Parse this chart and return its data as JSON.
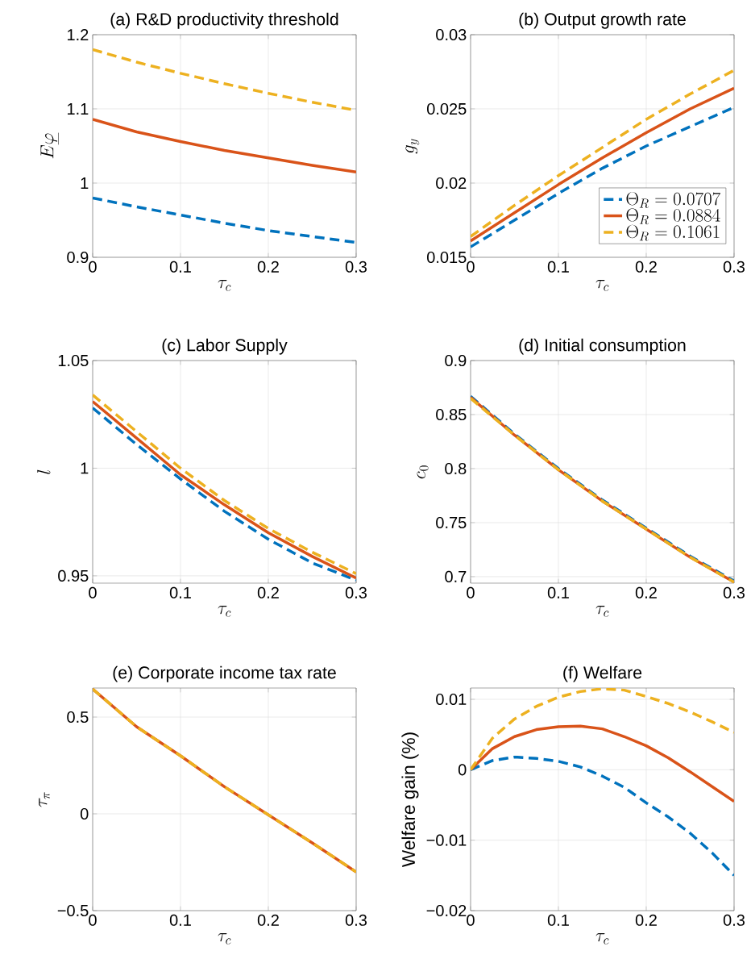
{
  "chart_data": [
    {
      "type": "line",
      "title": "(a) R&D productivity threshold",
      "xlabel": "\\tau_c",
      "ylabel": "E\\underline{\\varphi}",
      "grid": true,
      "x": [
        0,
        0.05,
        0.1,
        0.15,
        0.2,
        0.25,
        0.3
      ],
      "xlim": [
        0,
        0.3
      ],
      "xticks": [
        0,
        0.1,
        0.2,
        0.3
      ],
      "ylim": [
        0.9,
        1.2
      ],
      "yticks": [
        0.9,
        1,
        1.1,
        1.2
      ],
      "series": [
        {
          "color": "#0072bd",
          "line_style": "dashed",
          "values": [
            0.98,
            0.968,
            0.957,
            0.946,
            0.936,
            0.928,
            0.92
          ]
        },
        {
          "color": "#d95319",
          "line_style": "solid",
          "values": [
            1.086,
            1.069,
            1.056,
            1.044,
            1.034,
            1.024,
            1.015
          ]
        },
        {
          "color": "#edb120",
          "line_style": "dashed",
          "values": [
            1.18,
            1.163,
            1.148,
            1.134,
            1.121,
            1.109,
            1.098
          ]
        }
      ]
    },
    {
      "type": "line",
      "title": "(b) Output growth rate",
      "xlabel": "\\tau_c",
      "ylabel": "g_y",
      "grid": true,
      "legend": "bottom right",
      "x": [
        0,
        0.05,
        0.1,
        0.15,
        0.2,
        0.25,
        0.3
      ],
      "xlim": [
        0,
        0.3
      ],
      "xticks": [
        0,
        0.1,
        0.2,
        0.3
      ],
      "ylim": [
        0.015,
        0.03
      ],
      "yticks": [
        0.015,
        0.02,
        0.025,
        0.03
      ],
      "series": [
        {
          "name": "\\Theta_R = 0.0707",
          "color": "#0072bd",
          "line_style": "dashed",
          "values": [
            0.0157,
            0.0175,
            0.0193,
            0.021,
            0.0225,
            0.0238,
            0.0251
          ]
        },
        {
          "name": "\\Theta_R = 0.0884",
          "color": "#d95319",
          "line_style": "solid",
          "values": [
            0.0161,
            0.018,
            0.0199,
            0.0217,
            0.0234,
            0.025,
            0.0264
          ]
        },
        {
          "name": "\\Theta_R = 0.1061",
          "color": "#edb120",
          "line_style": "dashed",
          "values": [
            0.0164,
            0.0185,
            0.0205,
            0.0224,
            0.0243,
            0.026,
            0.0276
          ]
        }
      ]
    },
    {
      "type": "line",
      "title": "(c) Labor Supply",
      "xlabel": "\\tau_c",
      "ylabel": "l",
      "grid": true,
      "x": [
        0,
        0.05,
        0.1,
        0.15,
        0.2,
        0.25,
        0.3
      ],
      "xlim": [
        0,
        0.3
      ],
      "xticks": [
        0,
        0.1,
        0.2,
        0.3
      ],
      "ylim": [
        0.9466,
        1.05
      ],
      "yticks": [
        0.95,
        1,
        1.05
      ],
      "series": [
        {
          "color": "#0072bd",
          "line_style": "dashed",
          "values": [
            1.028,
            1.011,
            0.995,
            0.98,
            0.967,
            0.956,
            0.948
          ]
        },
        {
          "color": "#d95319",
          "line_style": "solid",
          "values": [
            1.031,
            1.014,
            0.997,
            0.983,
            0.97,
            0.959,
            0.949
          ]
        },
        {
          "color": "#edb120",
          "line_style": "dashed",
          "values": [
            1.034,
            1.017,
            1.0,
            0.985,
            0.972,
            0.961,
            0.951
          ]
        }
      ]
    },
    {
      "type": "line",
      "title": "(d) Initial consumption",
      "xlabel": "\\tau_c",
      "ylabel": "c_0",
      "grid": true,
      "x": [
        0,
        0.05,
        0.1,
        0.15,
        0.2,
        0.25,
        0.3
      ],
      "xlim": [
        0,
        0.3
      ],
      "xticks": [
        0,
        0.1,
        0.2,
        0.3
      ],
      "ylim": [
        0.694,
        0.9
      ],
      "yticks": [
        0.7,
        0.75,
        0.8,
        0.85,
        0.9
      ],
      "series": [
        {
          "color": "#0072bd",
          "line_style": "dashed",
          "values": [
            0.867,
            0.832,
            0.8,
            0.771,
            0.745,
            0.719,
            0.696
          ]
        },
        {
          "color": "#d95319",
          "line_style": "solid",
          "values": [
            0.866,
            0.831,
            0.799,
            0.77,
            0.744,
            0.718,
            0.695
          ]
        },
        {
          "color": "#edb120",
          "line_style": "dashed",
          "values": [
            0.865,
            0.831,
            0.799,
            0.77,
            0.744,
            0.718,
            0.695
          ]
        }
      ]
    },
    {
      "type": "line",
      "title": "(e) Corporate income tax rate",
      "xlabel": "\\tau_c",
      "ylabel": "\\tau_\\pi",
      "grid": true,
      "x": [
        0,
        0.05,
        0.1,
        0.15,
        0.2,
        0.25,
        0.3
      ],
      "xlim": [
        0,
        0.3
      ],
      "xticks": [
        0,
        0.1,
        0.2,
        0.3
      ],
      "ylim": [
        -0.5,
        0.65
      ],
      "yticks": [
        {
          "value": -0.5,
          "label": "−0.5"
        },
        0,
        0.5
      ],
      "series": [
        {
          "color": "#0072bd",
          "line_style": "dashed",
          "values": [
            null,
            null,
            null,
            null,
            null,
            null,
            null
          ]
        },
        {
          "color": "#d95319",
          "line_style": "solid",
          "values": [
            0.645,
            0.45,
            0.3,
            0.14,
            -0.005,
            -0.15,
            -0.3
          ]
        },
        {
          "color": "#edb120",
          "line_style": "dashed",
          "values": [
            0.645,
            0.45,
            0.3,
            0.14,
            -0.005,
            -0.15,
            -0.3
          ]
        }
      ]
    },
    {
      "type": "line",
      "title": "(f) Welfare",
      "xlabel": "\\tau_c",
      "ylabel": "Welfare gain (%)",
      "grid": true,
      "x": [
        0,
        0.025,
        0.05,
        0.075,
        0.1,
        0.125,
        0.15,
        0.175,
        0.2,
        0.225,
        0.25,
        0.275,
        0.3
      ],
      "xlim": [
        0,
        0.3
      ],
      "xticks": [
        0,
        0.1,
        0.2,
        0.3
      ],
      "ylim": [
        -0.02,
        0.0116
      ],
      "yticks": [
        {
          "value": -0.02,
          "label": "−0.02"
        },
        {
          "value": -0.01,
          "label": "−0.01"
        },
        0,
        0.01
      ],
      "series": [
        {
          "color": "#0072bd",
          "line_style": "dashed",
          "values": [
            0,
            0.0013,
            0.0018,
            0.0016,
            0.0012,
            0.0004,
            -0.0009,
            -0.0025,
            -0.0047,
            -0.0067,
            -0.009,
            -0.0118,
            -0.015
          ]
        },
        {
          "color": "#d95319",
          "line_style": "solid",
          "values": [
            0,
            0.003,
            0.0047,
            0.0057,
            0.0061,
            0.0062,
            0.0058,
            0.0047,
            0.0034,
            0.0017,
            -0.0003,
            -0.0024,
            -0.0045
          ]
        },
        {
          "color": "#edb120",
          "line_style": "dashed",
          "values": [
            0,
            0.0045,
            0.0072,
            0.009,
            0.0103,
            0.0111,
            0.0115,
            0.0113,
            0.0104,
            0.0094,
            0.0082,
            0.0068,
            0.0053
          ]
        }
      ]
    }
  ]
}
